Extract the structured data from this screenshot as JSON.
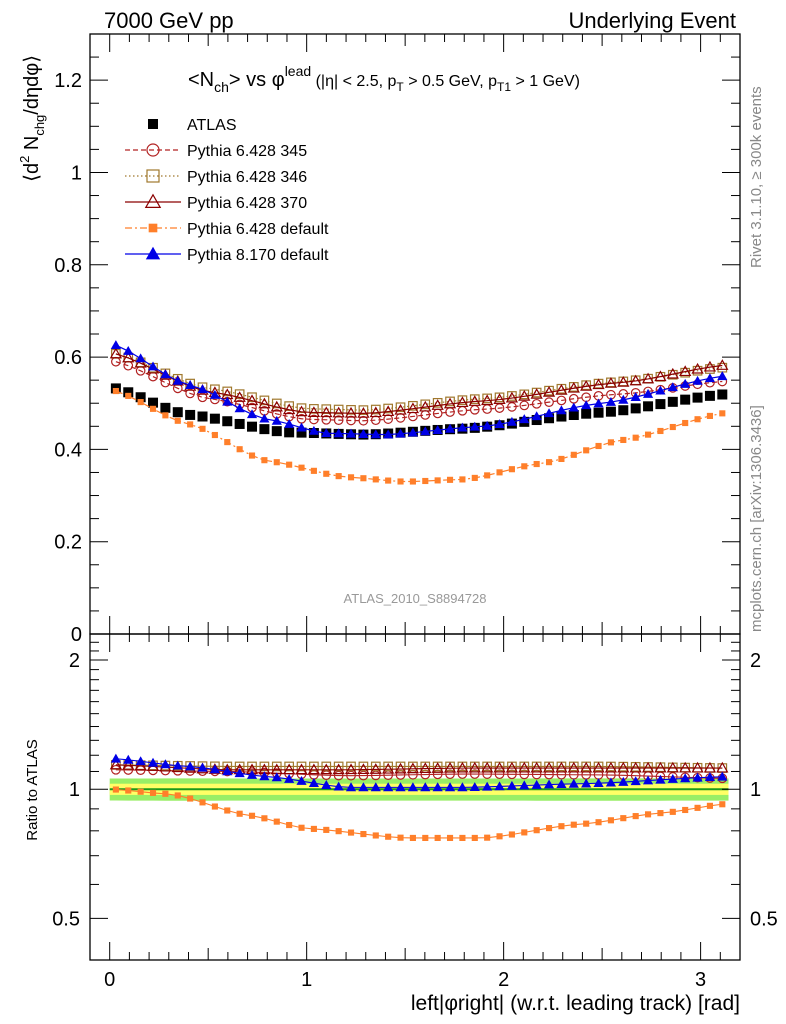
{
  "header": {
    "left": "7000 GeV pp",
    "right": "Underlying Event",
    "side_top": "Rivet 3.1.10, ≥ 300k events",
    "side_bottom": "mcplots.cern.ch [arXiv:1306.3436]",
    "watermark": "ATLAS_2010_S8894728"
  },
  "colors": {
    "atlas": "#000000",
    "p345": "#b22222",
    "p346": "#a0782d",
    "p370": "#8b0000",
    "p6def": "#ff7f2a",
    "p8def": "#0000e6",
    "band_inner": "#ffff66",
    "band_outer": "#99ee66",
    "ref_line": "#1a9a1a"
  },
  "chart_data": [
    {
      "type": "scatter",
      "panel": "main",
      "title": "<N_ch> vs φ^lead (|η| < 2.5, p_T > 0.5 GeV, p_T1 > 1 GeV)",
      "title_main": "<N",
      "title_main_sub": "ch",
      "title_mid": "> vs φ",
      "title_sup": "lead",
      "title_cond_a": " (|η| < 2.5, p",
      "title_cond_sub_a": "T",
      "title_cond_b": " > 0.5 GeV, p",
      "title_cond_sub_b": "T1",
      "title_cond_c": " > 1 GeV)",
      "ylabel": "⟨d² N_chg/dηdφ⟩",
      "ylabel_a": "⟨d",
      "ylabel_sup": "2",
      "ylabel_b": " N",
      "ylabel_sub": "chg",
      "ylabel_c": "/dηdφ⟩",
      "xlim": [
        -0.1,
        3.2
      ],
      "ylim": [
        0,
        1.3
      ],
      "yticks": [
        "0",
        "0.2",
        "0.4",
        "0.6",
        "0.8",
        "1",
        "1.2"
      ],
      "legend_position": "top-left",
      "series": [
        {
          "name": "ATLAS",
          "key": "atlas",
          "marker": "square-filled",
          "control": [
            [
              0.0,
              0.535
            ],
            [
              0.4,
              0.475
            ],
            [
              0.9,
              0.437
            ],
            [
              1.3,
              0.432
            ],
            [
              1.8,
              0.445
            ],
            [
              2.5,
              0.48
            ],
            [
              3.14,
              0.52
            ]
          ]
        },
        {
          "name": "Pythia 6.428 345",
          "key": "p345",
          "marker": "circle-open",
          "line": "dashed",
          "control": [
            [
              0.0,
              0.593
            ],
            [
              0.5,
              0.51
            ],
            [
              1.0,
              0.465
            ],
            [
              1.3,
              0.462
            ],
            [
              1.9,
              0.487
            ],
            [
              2.6,
              0.52
            ],
            [
              3.14,
              0.548
            ]
          ]
        },
        {
          "name": "Pythia 6.428 346",
          "key": "p346",
          "marker": "square-open",
          "line": "dotted",
          "control": [
            [
              0.0,
              0.61
            ],
            [
              0.5,
              0.532
            ],
            [
              1.0,
              0.488
            ],
            [
              1.3,
              0.485
            ],
            [
              1.9,
              0.51
            ],
            [
              2.6,
              0.547
            ],
            [
              3.14,
              0.578
            ]
          ]
        },
        {
          "name": "Pythia 6.428 370",
          "key": "p370",
          "marker": "triangle-open",
          "line": "solid",
          "control": [
            [
              0.0,
              0.61
            ],
            [
              0.5,
              0.525
            ],
            [
              1.0,
              0.48
            ],
            [
              1.3,
              0.478
            ],
            [
              1.9,
              0.505
            ],
            [
              2.6,
              0.545
            ],
            [
              3.14,
              0.583
            ]
          ]
        },
        {
          "name": "Pythia 6.428 default",
          "key": "p6def",
          "marker": "square-filled-small",
          "line": "dashdot",
          "control": [
            [
              0.0,
              0.53
            ],
            [
              0.4,
              0.455
            ],
            [
              0.8,
              0.375
            ],
            [
              1.2,
              0.34
            ],
            [
              1.5,
              0.33
            ],
            [
              1.8,
              0.335
            ],
            [
              2.2,
              0.37
            ],
            [
              2.6,
              0.42
            ],
            [
              3.14,
              0.48
            ]
          ]
        },
        {
          "name": "Pythia 8.170 default",
          "key": "p8def",
          "marker": "triangle-filled",
          "line": "solid",
          "control": [
            [
              0.0,
              0.63
            ],
            [
              0.4,
              0.54
            ],
            [
              0.8,
              0.465
            ],
            [
              1.1,
              0.435
            ],
            [
              1.4,
              0.432
            ],
            [
              1.9,
              0.45
            ],
            [
              2.5,
              0.5
            ],
            [
              3.14,
              0.56
            ]
          ]
        }
      ]
    },
    {
      "type": "scatter",
      "panel": "ratio",
      "xlabel": "left|φright| (w.r.t. leading track) [rad]",
      "ylabel": "Ratio to ATLAS",
      "xlim": [
        -0.1,
        3.2
      ],
      "ylim": [
        0.4,
        2.3
      ],
      "yticks": [
        "0.5",
        "1",
        "2"
      ],
      "xticks": [
        "0",
        "1",
        "2",
        "3"
      ],
      "series": [
        {
          "name": "Pythia 6.428 345",
          "key": "p345",
          "control": [
            [
              0.0,
              1.11
            ],
            [
              0.6,
              1.1
            ],
            [
              1.2,
              1.075
            ],
            [
              1.8,
              1.085
            ],
            [
              2.5,
              1.08
            ],
            [
              3.14,
              1.06
            ]
          ]
        },
        {
          "name": "Pythia 6.428 346",
          "key": "p346",
          "control": [
            [
              0.0,
              1.14
            ],
            [
              0.6,
              1.13
            ],
            [
              1.2,
              1.13
            ],
            [
              1.8,
              1.13
            ],
            [
              2.5,
              1.13
            ],
            [
              3.14,
              1.12
            ]
          ]
        },
        {
          "name": "Pythia 6.428 370",
          "key": "p370",
          "control": [
            [
              0.0,
              1.14
            ],
            [
              0.6,
              1.11
            ],
            [
              1.2,
              1.11
            ],
            [
              1.8,
              1.12
            ],
            [
              2.5,
              1.12
            ],
            [
              3.14,
              1.12
            ]
          ]
        },
        {
          "name": "Pythia 6.428 default",
          "key": "p6def",
          "control": [
            [
              0.0,
              1.0
            ],
            [
              0.3,
              0.975
            ],
            [
              0.7,
              0.87
            ],
            [
              1.0,
              0.81
            ],
            [
              1.5,
              0.77
            ],
            [
              1.9,
              0.77
            ],
            [
              2.4,
              0.83
            ],
            [
              2.8,
              0.88
            ],
            [
              3.14,
              0.925
            ]
          ]
        },
        {
          "name": "Pythia 8.170 default",
          "key": "p8def",
          "control": [
            [
              0.0,
              1.18
            ],
            [
              0.4,
              1.13
            ],
            [
              0.8,
              1.07
            ],
            [
              1.2,
              1.01
            ],
            [
              1.8,
              1.01
            ],
            [
              2.4,
              1.03
            ],
            [
              3.14,
              1.07
            ]
          ]
        }
      ]
    }
  ]
}
